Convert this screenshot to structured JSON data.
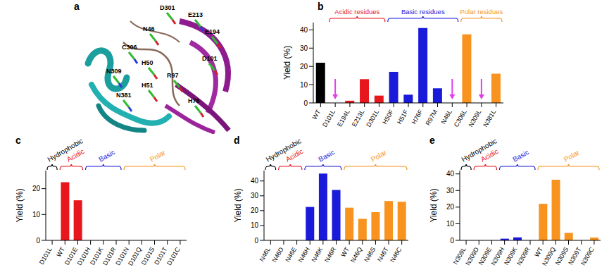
{
  "panel_a": {
    "title": "a",
    "labels": [
      "D301",
      "E213",
      "N46",
      "E194",
      "C306",
      "D101",
      "H50",
      "N309",
      "R97",
      "H51",
      "N381",
      "H76"
    ]
  },
  "chart_data": [
    {
      "type": "bar",
      "title": "b",
      "y_label": "Yield (%)",
      "marker": "arrow",
      "categories": [
        "WT",
        "D101L",
        "E194L",
        "E213L",
        "D301L",
        "H50F",
        "H51F",
        "H76F",
        "R97M",
        "N46L",
        "C306L",
        "N309L",
        "N381L"
      ],
      "values": [
        22,
        0,
        1.2,
        13,
        4,
        17,
        4.5,
        41,
        8,
        0,
        37.5,
        0,
        16
      ],
      "colors": [
        "#000000",
        "#e8161d",
        "#e8161d",
        "#e8161d",
        "#e8161d",
        "#1a1adb",
        "#1a1adb",
        "#1a1adb",
        "#1a1adb",
        "#1a1adb",
        "#f7931e",
        "#f7931e",
        "#f7931e"
      ],
      "ylim": [
        0,
        44
      ],
      "yticks": [
        0,
        10,
        20,
        30,
        40
      ],
      "groups": [
        {
          "label": "Acidic residues",
          "color": "#e8161d",
          "from": "D101L",
          "to": "D301L"
        },
        {
          "label": "Basic residues",
          "color": "#1a1adb",
          "from": "H50F",
          "to": "N46L"
        },
        {
          "label": "Polar residues",
          "color": "#f7931e",
          "from": "C306L",
          "to": "N381L"
        }
      ]
    },
    {
      "type": "bar",
      "title": "c",
      "y_label": "Yield (%)",
      "categories": [
        "D101L",
        "WT",
        "D101E",
        "D101H",
        "D101K",
        "D101R",
        "D101N",
        "D101Q",
        "D101S",
        "D101T",
        "D101C"
      ],
      "values": [
        0,
        22.5,
        15.5,
        0,
        0,
        0,
        0,
        0,
        0,
        0,
        0
      ],
      "colors": [
        "#000000",
        "#e8161d",
        "#e8161d",
        "#1a1adb",
        "#1a1adb",
        "#1a1adb",
        "#f7931e",
        "#f7931e",
        "#f7931e",
        "#f7931e",
        "#f7931e"
      ],
      "ylim": [
        0,
        27
      ],
      "yticks": [
        0,
        10,
        20
      ],
      "groups": [
        {
          "label": "Hydrophobic",
          "color": "#000000",
          "from": "D101L",
          "to": "D101L"
        },
        {
          "label": "Acidic",
          "color": "#e8161d",
          "from": "WT",
          "to": "D101E"
        },
        {
          "label": "Basic",
          "color": "#1a1adb",
          "from": "D101H",
          "to": "D101R"
        },
        {
          "label": "Polar",
          "color": "#f7931e",
          "from": "D101N",
          "to": "D101C"
        }
      ]
    },
    {
      "type": "bar",
      "title": "d",
      "y_label": "Yield (%)",
      "categories": [
        "N46L",
        "N46D",
        "N46E",
        "N46H",
        "N46K",
        "N46R",
        "WT",
        "N46Q",
        "N46S",
        "N46T",
        "N46C"
      ],
      "values": [
        0,
        0,
        0,
        22.5,
        45,
        34,
        22,
        14.5,
        19,
        26.5,
        26
      ],
      "colors": [
        "#000000",
        "#e8161d",
        "#e8161d",
        "#1a1adb",
        "#1a1adb",
        "#1a1adb",
        "#f7931e",
        "#f7931e",
        "#f7931e",
        "#f7931e",
        "#f7931e"
      ],
      "ylim": [
        0,
        47
      ],
      "yticks": [
        0,
        10,
        20,
        30,
        40
      ],
      "groups": [
        {
          "label": "Hydrophobic",
          "color": "#000000",
          "from": "N46L",
          "to": "N46L"
        },
        {
          "label": "Acidic",
          "color": "#e8161d",
          "from": "N46D",
          "to": "N46E"
        },
        {
          "label": "Basic",
          "color": "#1a1adb",
          "from": "N46H",
          "to": "N46R"
        },
        {
          "label": "Polar",
          "color": "#f7931e",
          "from": "WT",
          "to": "N46C"
        }
      ]
    },
    {
      "type": "bar",
      "title": "e",
      "y_label": "Yield (%)",
      "categories": [
        "N309L",
        "N309D",
        "N309E",
        "N309H",
        "N309K",
        "N309R",
        "WT",
        "N309Q",
        "N309S",
        "N309T",
        "N309C"
      ],
      "values": [
        0,
        0,
        0,
        1,
        1.8,
        0,
        22,
        36.5,
        4.5,
        0,
        1.7
      ],
      "colors": [
        "#000000",
        "#e8161d",
        "#e8161d",
        "#1a1adb",
        "#1a1adb",
        "#1a1adb",
        "#f7931e",
        "#f7931e",
        "#f7931e",
        "#f7931e",
        "#f7931e"
      ],
      "ylim": [
        0,
        42
      ],
      "yticks": [
        0,
        10,
        20,
        30,
        40
      ],
      "groups": [
        {
          "label": "Hydrophobic",
          "color": "#000000",
          "from": "N309L",
          "to": "N309L"
        },
        {
          "label": "Acidic",
          "color": "#e8161d",
          "from": "N309D",
          "to": "N309E"
        },
        {
          "label": "Basic",
          "color": "#1a1adb",
          "from": "N309H",
          "to": "N309R"
        },
        {
          "label": "Polar",
          "color": "#f7931e",
          "from": "WT",
          "to": "N309C"
        }
      ]
    }
  ]
}
